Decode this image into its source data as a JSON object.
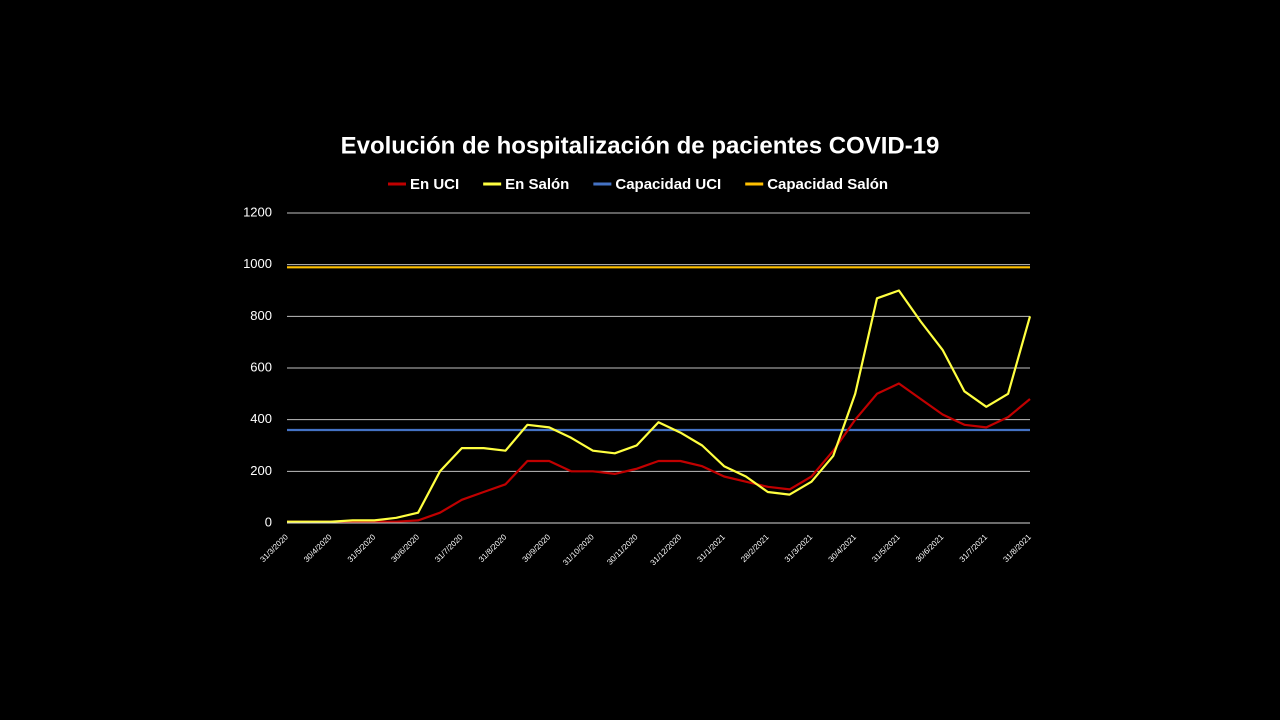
{
  "chart_data": {
    "type": "line",
    "title": "Evolución de hospitalización de pacientes COVID-19",
    "categories": [
      "31/3/2020",
      null,
      "30/4/2020",
      null,
      "31/5/2020",
      null,
      "30/6/2020",
      null,
      "31/7/2020",
      null,
      "31/8/2020",
      null,
      "30/9/2020",
      null,
      "31/10/2020",
      null,
      "30/11/2020",
      null,
      "31/12/2020",
      null,
      "31/1/2021",
      null,
      "28/2/2021",
      null,
      "31/3/2021",
      null,
      "30/4/2021",
      null,
      "31/5/2021",
      null,
      "30/6/2021",
      null,
      "31/7/2021",
      null,
      "31/8/2021"
    ],
    "series": [
      {
        "name": "En UCI",
        "color": "#c00000",
        "values": [
          5,
          5,
          5,
          5,
          5,
          5,
          10,
          40,
          90,
          120,
          150,
          240,
          240,
          200,
          200,
          190,
          210,
          240,
          240,
          220,
          180,
          160,
          140,
          130,
          180,
          280,
          400,
          500,
          540,
          480,
          420,
          380,
          370,
          410,
          480
        ]
      },
      {
        "name": "En Salón",
        "color": "#ffff40",
        "values": [
          5,
          5,
          5,
          10,
          10,
          20,
          40,
          200,
          290,
          290,
          280,
          380,
          370,
          330,
          280,
          270,
          300,
          390,
          350,
          300,
          220,
          180,
          120,
          110,
          160,
          260,
          500,
          870,
          900,
          780,
          670,
          510,
          450,
          500,
          800
        ]
      },
      {
        "name": "Capacidad UCI",
        "color": "#4472c4",
        "values": [
          360,
          360,
          360,
          360,
          360,
          360,
          360,
          360,
          360,
          360,
          360,
          360,
          360,
          360,
          360,
          360,
          360,
          360,
          360,
          360,
          360,
          360,
          360,
          360,
          360,
          360,
          360,
          360,
          360,
          360,
          360,
          360,
          360,
          360,
          360
        ]
      },
      {
        "name": "Capacidad Salón",
        "color": "#ffc000",
        "values": [
          990,
          990,
          990,
          990,
          990,
          990,
          990,
          990,
          990,
          990,
          990,
          990,
          990,
          990,
          990,
          990,
          990,
          990,
          990,
          990,
          990,
          990,
          990,
          990,
          990,
          990,
          990,
          990,
          990,
          990,
          990,
          990,
          990,
          990,
          990
        ]
      }
    ],
    "ylim": [
      0,
      1200
    ],
    "yticks": [
      0,
      200,
      400,
      600,
      800,
      1000,
      1200
    ],
    "grid": true,
    "legend": "top"
  }
}
